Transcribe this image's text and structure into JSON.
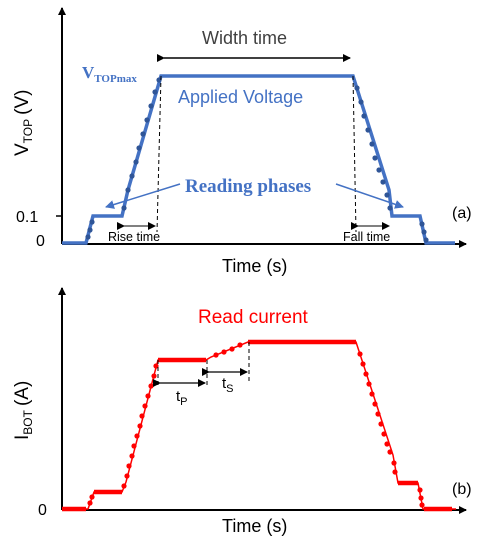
{
  "colors": {
    "blue": "#4472c4",
    "blue_dot": "#2f5597",
    "red": "#ff0000",
    "axis": "#000000"
  },
  "top": {
    "ylabel_main": "V",
    "ylabel_sub": "TOP",
    "ylabel_unit": "(V)",
    "xlabel": "Time (s)",
    "tick_01": "0.1",
    "tick_0": "0",
    "panel_tag": "(a)",
    "width_time": "Width time",
    "vtop_main": "V",
    "vtop_sub": "TOPmax",
    "applied_voltage": "Applied Voltage",
    "reading_phases": "Reading phases",
    "rise_time": "Rise time",
    "fall_time": "Fall time"
  },
  "bottom": {
    "ylabel_main": "I",
    "ylabel_sub": "BOT",
    "ylabel_unit": "(A)",
    "xlabel": "Time (s)",
    "tick_0": "0",
    "panel_tag": "(b)",
    "read_current": "Read current",
    "tp_main": "t",
    "tp_sub": "P",
    "ts_main": "t",
    "ts_sub": "S"
  }
}
